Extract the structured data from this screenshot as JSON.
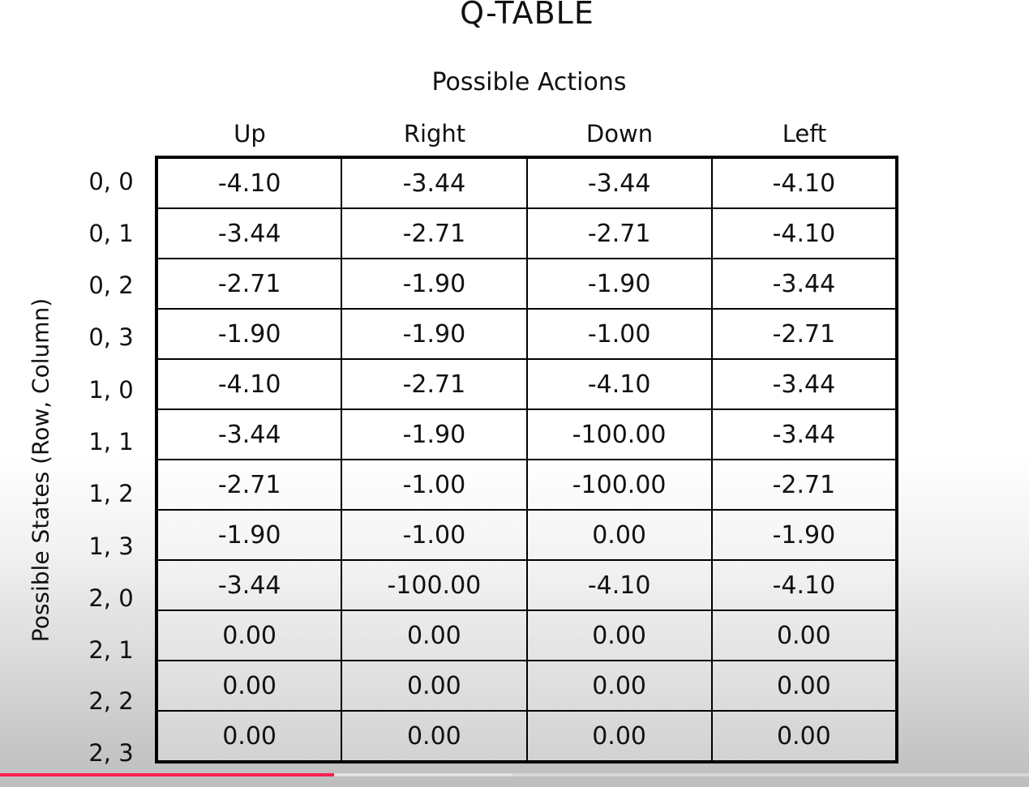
{
  "title": "Q-TABLE",
  "actions_label": "Possible Actions",
  "states_label": "Possible States (Row, Column)",
  "columns": [
    "Up",
    "Right",
    "Down",
    "Left"
  ],
  "rows": [
    {
      "state": "0, 0",
      "values": [
        "-4.10",
        "-3.44",
        "-3.44",
        "-4.10"
      ]
    },
    {
      "state": "0, 1",
      "values": [
        "-3.44",
        "-2.71",
        "-2.71",
        "-4.10"
      ]
    },
    {
      "state": "0, 2",
      "values": [
        "-2.71",
        "-1.90",
        "-1.90",
        "-3.44"
      ]
    },
    {
      "state": "0, 3",
      "values": [
        "-1.90",
        "-1.90",
        "-1.00",
        "-2.71"
      ]
    },
    {
      "state": "1, 0",
      "values": [
        "-4.10",
        "-2.71",
        "-4.10",
        "-3.44"
      ]
    },
    {
      "state": "1, 1",
      "values": [
        "-3.44",
        "-1.90",
        "-100.00",
        "-3.44"
      ]
    },
    {
      "state": "1, 2",
      "values": [
        "-2.71",
        "-1.00",
        "-100.00",
        "-2.71"
      ]
    },
    {
      "state": "1, 3",
      "values": [
        "-1.90",
        "-1.00",
        "0.00",
        "-1.90"
      ]
    },
    {
      "state": "2, 0",
      "values": [
        "-3.44",
        "-100.00",
        "-4.10",
        "-4.10"
      ]
    },
    {
      "state": "2, 1",
      "values": [
        "0.00",
        "0.00",
        "0.00",
        "0.00"
      ]
    },
    {
      "state": "2, 2",
      "values": [
        "0.00",
        "0.00",
        "0.00",
        "0.00"
      ]
    },
    {
      "state": "2, 3",
      "values": [
        "0.00",
        "0.00",
        "0.00",
        "0.00"
      ]
    }
  ],
  "video_progress": {
    "played_fraction": 0.325,
    "color": "#ff1f4f"
  }
}
